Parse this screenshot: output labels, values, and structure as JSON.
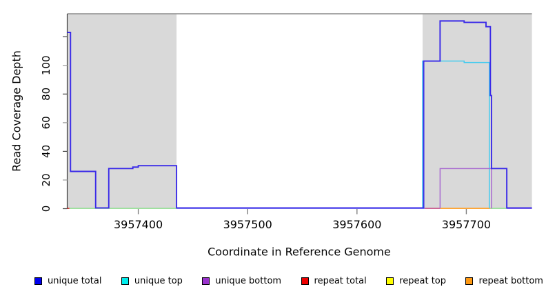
{
  "chart_data": {
    "type": "line",
    "title": "",
    "xlabel": "Coordinate in Reference Genome",
    "ylabel": "Read Coverage Depth",
    "xlim": [
      3957335,
      3957760
    ],
    "ylim": [
      0,
      136
    ],
    "x_ticks": [
      3957400,
      3957500,
      3957600,
      3957700
    ],
    "y_ticks": [
      0,
      20,
      40,
      60,
      80,
      100,
      120
    ],
    "y_tick_labels": [
      "0",
      "20",
      "40",
      "60",
      "80",
      "100",
      ""
    ],
    "grid": false,
    "legend_position": "bottom",
    "shaded_regions": [
      {
        "x1": 3957335,
        "x2": 3957435,
        "color": "#d9d9d9"
      },
      {
        "x1": 3957660,
        "x2": 3957760,
        "color": "#d9d9d9"
      }
    ],
    "series": [
      {
        "name": "unique total",
        "color": "#0000ee",
        "draw_color": "#3a2ae8",
        "segments": [
          [
            3957335,
            3957338,
            123
          ],
          [
            3957338,
            3957361,
            26
          ],
          [
            3957361,
            3957373,
            0
          ],
          [
            3957373,
            3957395,
            28
          ],
          [
            3957395,
            3957400,
            29
          ],
          [
            3957400,
            3957435,
            30
          ],
          [
            3957435,
            3957661,
            0
          ],
          [
            3957661,
            3957676,
            103
          ],
          [
            3957676,
            3957698,
            131
          ],
          [
            3957698,
            3957718,
            130
          ],
          [
            3957718,
            3957722,
            127
          ],
          [
            3957722,
            3957723,
            79
          ],
          [
            3957723,
            3957737,
            28
          ],
          [
            3957737,
            3957760,
            0
          ]
        ]
      },
      {
        "name": "unique top",
        "color": "#00eeee",
        "draw_color": "#44cbee",
        "segments": [
          [
            3957335,
            3957660,
            0
          ],
          [
            3957660,
            3957698,
            103
          ],
          [
            3957698,
            3957721,
            102
          ],
          [
            3957721,
            3957760,
            0
          ]
        ]
      },
      {
        "name": "unique bottom",
        "color": "#9a32cd",
        "draw_color": "#a86ad0",
        "segments": [
          [
            3957335,
            3957676,
            0
          ],
          [
            3957676,
            3957723,
            28
          ],
          [
            3957723,
            3957760,
            0
          ]
        ]
      },
      {
        "name": "repeat total",
        "color": "#ee0000",
        "draw_color": "#ee0000",
        "segments": [
          [
            3957335,
            3957760,
            0
          ]
        ]
      },
      {
        "name": "repeat top",
        "color": "#ffff00",
        "draw_color": "#ffff00",
        "segments": [
          [
            3957335,
            3957760,
            0
          ]
        ]
      },
      {
        "name": "repeat bottom",
        "color": "#ff9912",
        "draw_color": "#ff9912",
        "segments": [
          [
            3957335,
            3957760,
            0
          ]
        ]
      }
    ],
    "baseline_overlays": [
      {
        "x1": 3957335,
        "x2": 3957337,
        "color": "#dd2222"
      },
      {
        "x1": 3957337,
        "x2": 3957435,
        "color": "#90dd90"
      },
      {
        "x1": 3957435,
        "x2": 3957662,
        "color": "#7f86ef"
      },
      {
        "x1": 3957662,
        "x2": 3957676,
        "color": "#c64f85"
      },
      {
        "x1": 3957676,
        "x2": 3957722,
        "color": "#ff9a1a"
      },
      {
        "x1": 3957722,
        "x2": 3957737,
        "color": "#90dd90"
      },
      {
        "x1": 3957737,
        "x2": 3957760,
        "color": "#8a63ea"
      }
    ]
  },
  "legend": {
    "items": [
      {
        "label": "unique total",
        "color": "#0000ee"
      },
      {
        "label": "unique top",
        "color": "#00eeee"
      },
      {
        "label": "unique bottom",
        "color": "#9a32cd"
      },
      {
        "label": "repeat total",
        "color": "#ee0000"
      },
      {
        "label": "repeat top",
        "color": "#ffff00"
      },
      {
        "label": "repeat bottom",
        "color": "#ff9912"
      }
    ]
  }
}
